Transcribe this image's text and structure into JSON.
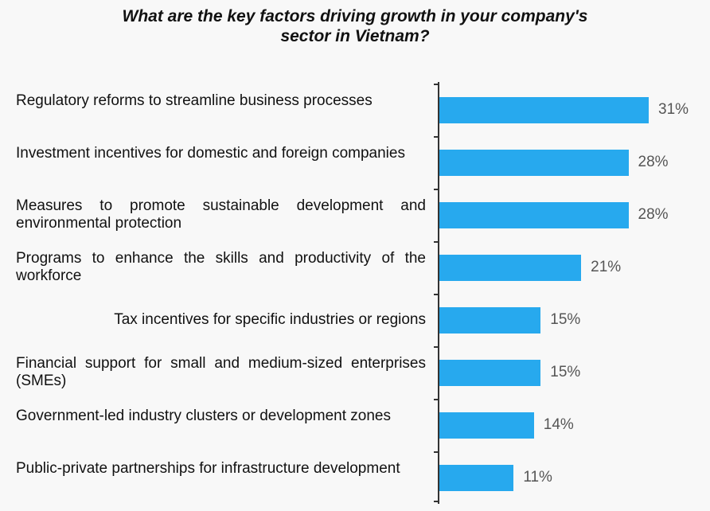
{
  "chart_data": {
    "type": "bar",
    "orientation": "horizontal",
    "title": "What are the key factors driving growth in your company's sector in Vietnam?",
    "title_lines": [
      "What are the key factors driving growth in your company's",
      "sector in Vietnam?"
    ],
    "categories": [
      "Regulatory reforms to streamline business processes",
      "Investment incentives for domestic and foreign companies",
      "Measures to promote sustainable development and environmental protection",
      "Programs to enhance the skills and productivity of the workforce",
      "Tax incentives for specific industries or regions",
      "Financial support for small and medium-sized enterprises (SMEs)",
      "Government-led industry clusters or development zones",
      "Public-private partnerships for infrastructure development"
    ],
    "values": [
      31,
      28,
      28,
      21,
      15,
      15,
      14,
      11
    ],
    "value_labels": [
      "31%",
      "28%",
      "28%",
      "21%",
      "15%",
      "15%",
      "14%",
      "11%"
    ],
    "xlim": [
      0,
      31
    ],
    "unit": "%",
    "bar_color": "#27a9ee",
    "grid": false,
    "legend": "none"
  }
}
